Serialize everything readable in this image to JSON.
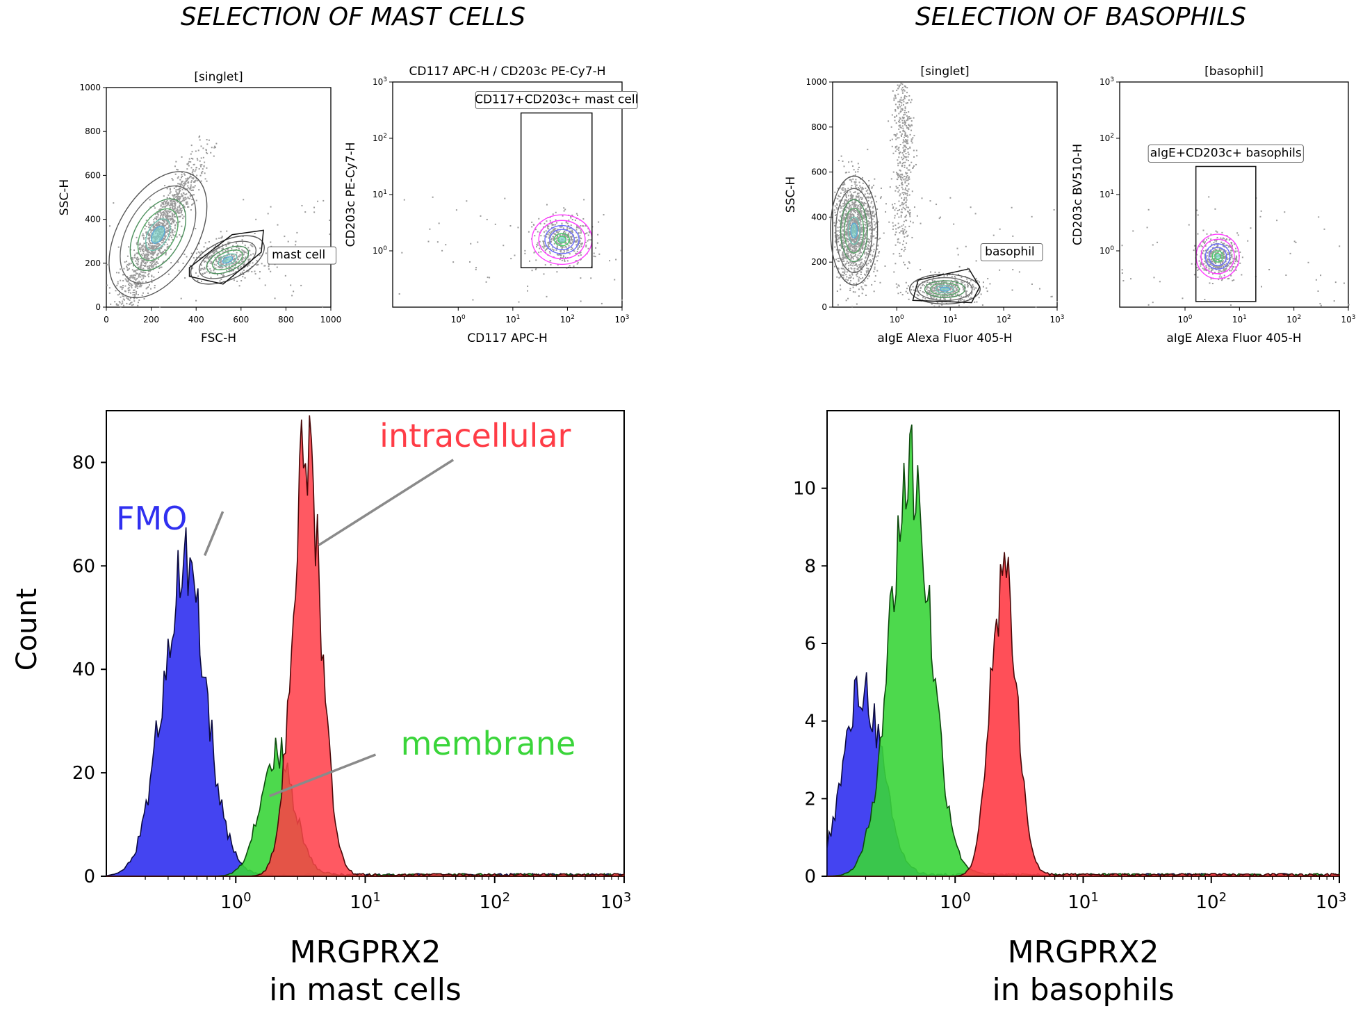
{
  "sections": {
    "mast_title": "SELECTION OF MAST CELLS",
    "baso_title": "SELECTION OF BASOPHILS"
  },
  "colors": {
    "fmo": "#3030f0",
    "membrane": "#3ad53a",
    "intracellular": "#ff3c46",
    "events": "#9a9a9a",
    "gate": "#111111"
  },
  "chart_data": [
    {
      "type": "scatter",
      "title": "[singlet]",
      "xlabel": "FSC-H",
      "ylabel": "SSC-H",
      "xlim": [
        0,
        1000
      ],
      "ylim": [
        0,
        1000
      ],
      "xticks": [
        "0",
        "200",
        "400",
        "600",
        "800",
        "1000"
      ],
      "yticks": [
        "0",
        "200",
        "400",
        "600",
        "800",
        "1000"
      ],
      "gate": {
        "label": "mast cell",
        "polygon": [
          [
            370,
            180
          ],
          [
            560,
            330
          ],
          [
            700,
            350
          ],
          [
            690,
            250
          ],
          [
            520,
            105
          ],
          [
            370,
            140
          ]
        ]
      },
      "populations": [
        {
          "name": "main",
          "center": [
            230,
            330
          ],
          "spread": [
            90,
            130
          ]
        },
        {
          "name": "mast cell",
          "center": [
            540,
            215
          ],
          "spread": [
            80,
            40
          ]
        }
      ]
    },
    {
      "type": "scatter",
      "title": "CD117 APC-H / CD203c PE-Cy7-H",
      "xlabel": "CD117 APC-H",
      "ylabel": "CD203c PE-Cy7-H",
      "xlim_log10": [
        -1.2,
        3
      ],
      "ylim_log10": [
        -1,
        3
      ],
      "xticks": [
        "10^0",
        "10^1",
        "10^2",
        "10^3"
      ],
      "yticks": [
        "10^0",
        "10^1",
        "10^2",
        "10^3"
      ],
      "gate": {
        "label": "CD117+CD203c+ mast cell",
        "rect_log10": [
          [
            1.15,
            -0.3
          ],
          [
            2.45,
            2.45
          ]
        ]
      },
      "populations": [
        {
          "name": "CD117+CD203c+",
          "center_log10": [
            1.9,
            0.2
          ],
          "spread_log10": [
            0.25,
            0.2
          ]
        }
      ]
    },
    {
      "type": "scatter",
      "title": "[singlet]",
      "xlabel": "aIgE Alexa Fluor 405-H",
      "ylabel": "SSC-H",
      "xlim_log10": [
        -1.2,
        3
      ],
      "ylim": [
        0,
        1000
      ],
      "xticks": [
        "10^0",
        "10^1",
        "10^2",
        "10^3"
      ],
      "yticks": [
        "0",
        "200",
        "400",
        "600",
        "800",
        "1000"
      ],
      "gate": {
        "label": "basophil",
        "polygon_log10x": [
          [
            0.3,
            30
          ],
          [
            0.4,
            120
          ],
          [
            1.35,
            170
          ],
          [
            1.55,
            90
          ],
          [
            1.4,
            20
          ]
        ]
      },
      "populations": [
        {
          "name": "main",
          "center_log10x": [
            -0.8,
            340
          ],
          "spread": [
            0.2,
            110
          ]
        },
        {
          "name": "streak",
          "center_log10x": [
            0.1,
            700
          ],
          "spread": [
            0.1,
            250
          ]
        },
        {
          "name": "basophil",
          "center_log10x": [
            0.9,
            80
          ],
          "spread": [
            0.3,
            30
          ]
        }
      ]
    },
    {
      "type": "scatter",
      "title": "[basophil]",
      "xlabel": "aIgE Alexa Fluor 405-H",
      "ylabel": "CD203c BV510-H",
      "xlim_log10": [
        -1.2,
        3
      ],
      "ylim_log10": [
        -1,
        3
      ],
      "xticks": [
        "10^0",
        "10^1",
        "10^2",
        "10^3"
      ],
      "yticks": [
        "10^0",
        "10^1",
        "10^2",
        "10^3"
      ],
      "gate": {
        "label": "aIgE+CD203c+ basophils",
        "rect_log10": [
          [
            0.2,
            -0.9
          ],
          [
            1.3,
            1.5
          ]
        ]
      },
      "populations": [
        {
          "name": "aIgE+CD203c+",
          "center_log10": [
            0.6,
            -0.1
          ],
          "spread_log10": [
            0.18,
            0.18
          ]
        }
      ]
    },
    {
      "type": "area",
      "title": "",
      "xlabel": "MRGPRX2",
      "xlabel2": "in mast cells",
      "ylabel": "Count",
      "xlim_log10": [
        -1,
        3
      ],
      "ylim": [
        0,
        90
      ],
      "xticks": [
        "10^0",
        "10^1",
        "10^2",
        "10^3"
      ],
      "yticks": [
        "0",
        "20",
        "40",
        "60",
        "80"
      ],
      "series": [
        {
          "name": "FMO",
          "label": "FMO",
          "peak_log10": -0.4,
          "peak": 63,
          "width_log10": 0.17
        },
        {
          "name": "membrane",
          "label": "membrane",
          "peak_log10": 0.32,
          "peak": 26,
          "width_log10": 0.13
        },
        {
          "name": "intracellular",
          "label": "intracellular",
          "peak_log10": 0.55,
          "peak": 89,
          "width_log10": 0.11
        }
      ]
    },
    {
      "type": "area",
      "title": "",
      "xlabel": "MRGPRX2",
      "xlabel2": "in basophils",
      "ylabel": "",
      "xlim_log10": [
        -1,
        3
      ],
      "ylim": [
        0,
        12
      ],
      "xticks": [
        "10^0",
        "10^1",
        "10^2",
        "10^3"
      ],
      "yticks": [
        "0",
        "2",
        "4",
        "6",
        "8",
        "10"
      ],
      "series": [
        {
          "name": "FMO",
          "peak_log10": -0.72,
          "peak": 5.2,
          "width_log10": 0.15
        },
        {
          "name": "membrane",
          "peak_log10": -0.35,
          "peak": 11.3,
          "width_log10": 0.16
        },
        {
          "name": "intracellular",
          "peak_log10": 0.38,
          "peak": 8.6,
          "width_log10": 0.1
        }
      ]
    }
  ]
}
